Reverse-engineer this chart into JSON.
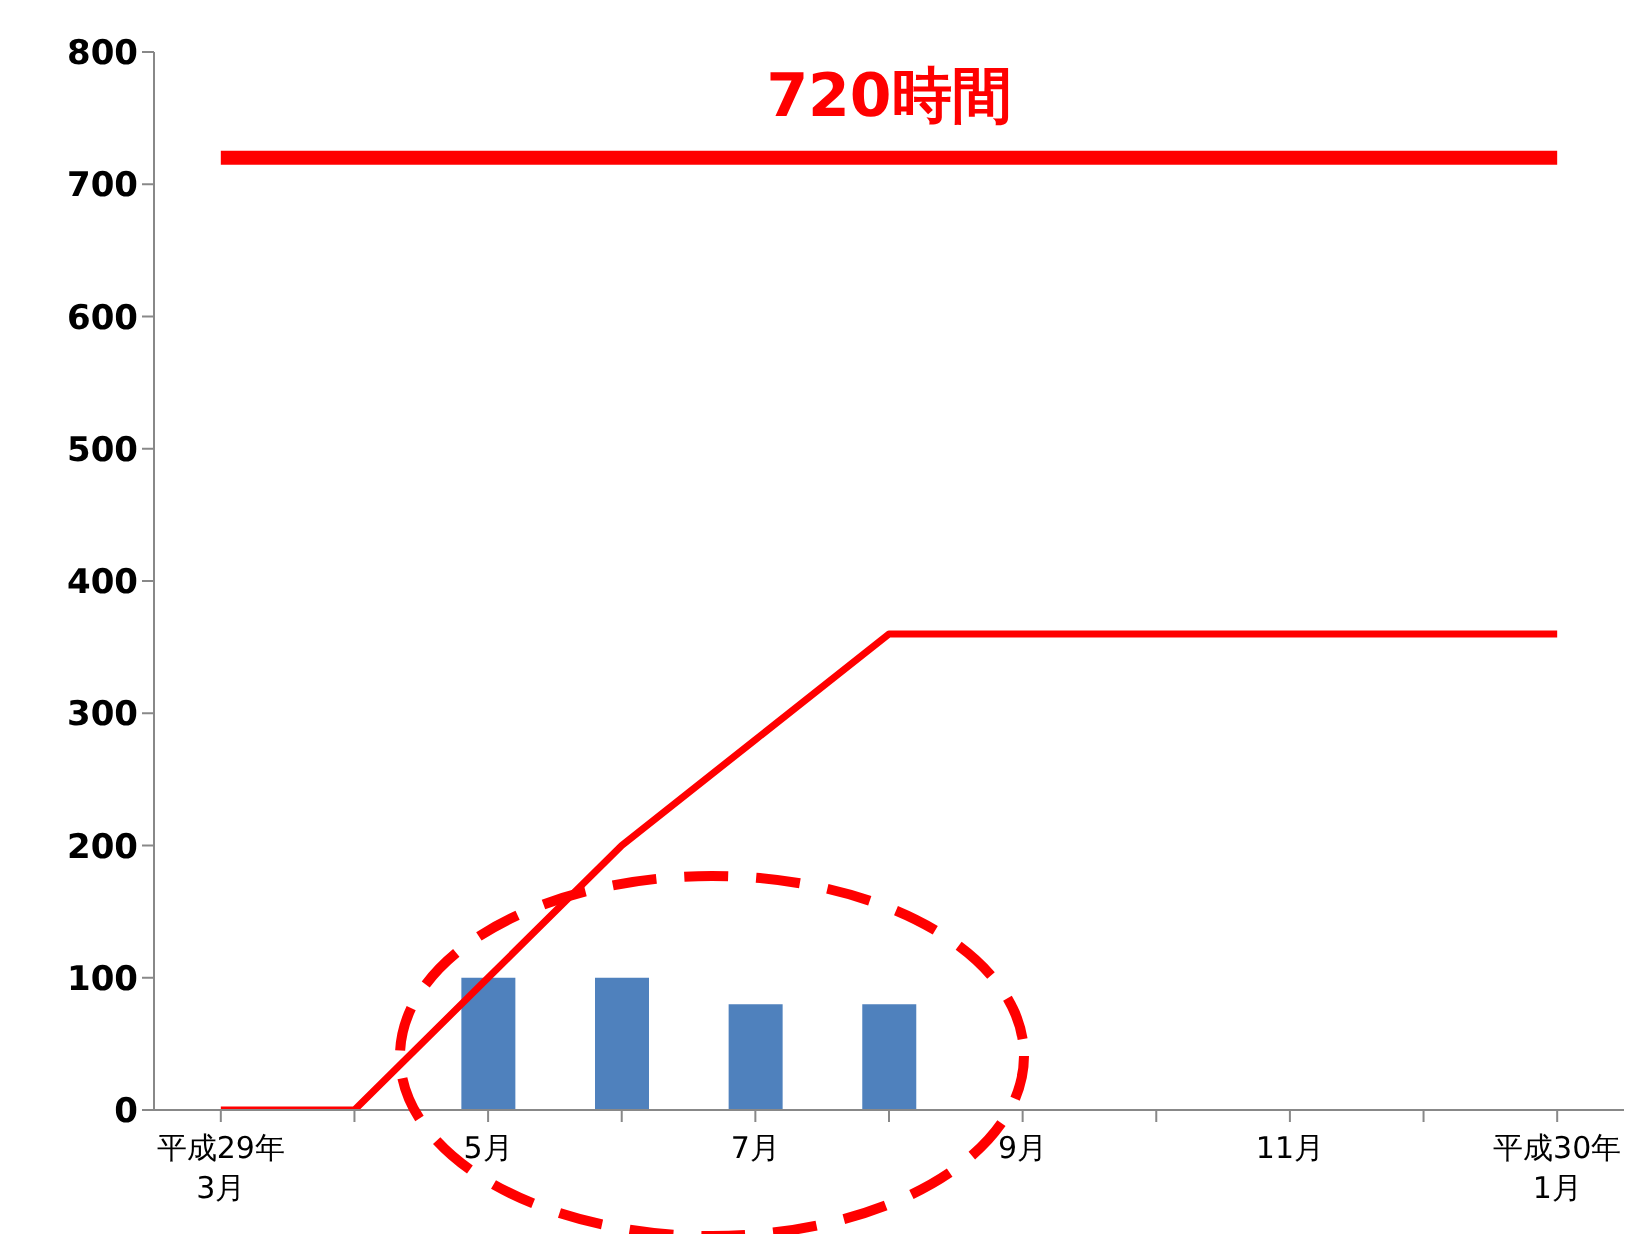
{
  "chart_data": {
    "type": "bar",
    "categories": [
      "平成29年\n3月",
      null,
      "5月",
      null,
      "7月",
      null,
      "9月",
      null,
      "11月",
      null,
      "平成30年\n1月"
    ],
    "series": [
      {
        "color": "#4f81bd",
        "values": [
          null,
          null,
          100,
          100,
          80,
          80,
          null,
          null,
          null,
          null,
          null
        ]
      },
      {
        "type": "line",
        "color": "#ff0000",
        "values": [
          0,
          0,
          100,
          200,
          280,
          360,
          360,
          360,
          360,
          360,
          360
        ]
      },
      {
        "type": "line",
        "color": "#ff0000",
        "values": [
          720,
          720,
          720,
          720,
          720,
          720,
          720,
          720,
          720,
          720,
          720
        ]
      }
    ],
    "annotations": [
      {
        "text": "720時間",
        "y": 720
      }
    ],
    "ylim": [
      0,
      800
    ],
    "yticks": [
      0,
      100,
      200,
      300,
      400,
      500,
      600,
      700,
      800
    ],
    "grid": false,
    "legend": false
  }
}
